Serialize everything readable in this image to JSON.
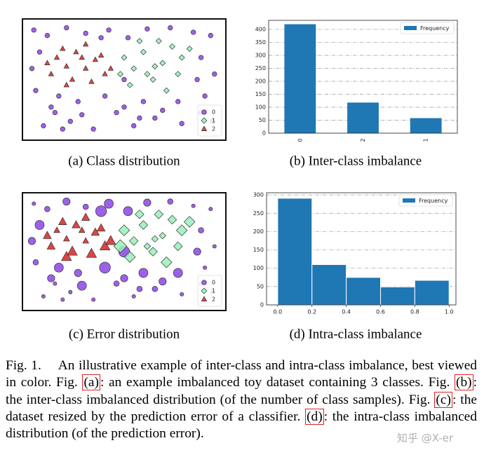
{
  "chart_data": [
    {
      "type": "scatter",
      "caption": "(a) Class distribution",
      "legend": "lower right",
      "series": [
        {
          "name": "0",
          "color": "#8d44e6",
          "marker": "circle",
          "x": [
            0.03,
            0.1,
            0.2,
            0.3,
            0.42,
            0.52,
            0.62,
            0.74,
            0.86,
            0.95,
            0.06,
            0.16,
            0.26,
            0.38,
            0.5,
            0.58,
            0.9,
            0.97,
            0.04,
            0.14,
            0.5,
            0.92,
            0.08,
            0.22,
            0.34,
            0.46,
            0.6,
            0.7,
            0.8,
            0.9,
            0.02,
            0.12,
            0.28,
            0.4,
            0.55,
            0.66,
            0.78,
            0.88,
            0.18,
            0.96
          ],
          "y": [
            0.95,
            0.9,
            0.97,
            0.92,
            0.95,
            0.88,
            0.96,
            0.97,
            0.93,
            0.9,
            0.75,
            0.35,
            0.3,
            0.88,
            0.5,
            0.15,
            0.7,
            0.55,
            0.4,
            0.2,
            0.25,
            0.35,
            0.08,
            0.12,
            0.05,
            0.2,
            0.3,
            0.22,
            0.1,
            0.2,
            0.6,
            0.25,
            0.18,
            0.35,
            0.08,
            0.15,
            0.3,
            0.5,
            0.05,
            0.12
          ]
        },
        {
          "name": "1",
          "color": "#98f0b8",
          "marker": "diamond",
          "x": [
            0.5,
            0.55,
            0.6,
            0.65,
            0.7,
            0.75,
            0.8,
            0.53,
            0.62,
            0.68,
            0.72,
            0.58,
            0.78,
            0.66,
            0.48,
            0.84
          ],
          "y": [
            0.7,
            0.6,
            0.75,
            0.5,
            0.65,
            0.8,
            0.7,
            0.45,
            0.55,
            0.85,
            0.4,
            0.85,
            0.55,
            0.62,
            0.55,
            0.78
          ]
        },
        {
          "name": "2",
          "color": "#d62424",
          "marker": "triangle",
          "x": [
            0.1,
            0.15,
            0.2,
            0.25,
            0.3,
            0.35,
            0.4,
            0.12,
            0.18,
            0.23,
            0.28,
            0.33,
            0.38,
            0.43,
            0.2,
            0.3
          ],
          "y": [
            0.65,
            0.7,
            0.62,
            0.75,
            0.6,
            0.68,
            0.55,
            0.55,
            0.78,
            0.5,
            0.7,
            0.48,
            0.72,
            0.6,
            0.45,
            0.82
          ]
        }
      ]
    },
    {
      "type": "bar",
      "caption": "(b) Inter-class imbalance",
      "legend": "upper right",
      "grid": true,
      "categories": [
        "0",
        "2",
        "1"
      ],
      "series": [
        {
          "name": "Frequency",
          "color": "#1f77b4",
          "values": [
            420,
            118,
            58
          ]
        }
      ],
      "ylim": [
        0,
        435
      ],
      "yticks": [
        0,
        50,
        100,
        150,
        200,
        250,
        300,
        350,
        400
      ]
    },
    {
      "type": "scatter",
      "caption": "(c) Error distribution",
      "legend": "lower right",
      "series": [
        {
          "name": "0",
          "color": "#8d44e6",
          "marker": "circle",
          "x": [
            0.03,
            0.1,
            0.2,
            0.3,
            0.42,
            0.52,
            0.62,
            0.74,
            0.86,
            0.95,
            0.06,
            0.16,
            0.26,
            0.38,
            0.5,
            0.58,
            0.9,
            0.97,
            0.04,
            0.14,
            0.5,
            0.92,
            0.08,
            0.22,
            0.34,
            0.46,
            0.6,
            0.7,
            0.8,
            0.9,
            0.02,
            0.12,
            0.28,
            0.4,
            0.55,
            0.66,
            0.78,
            0.88,
            0.18,
            0.96
          ],
          "y": [
            0.95,
            0.9,
            0.97,
            0.92,
            0.95,
            0.88,
            0.96,
            0.97,
            0.93,
            0.9,
            0.75,
            0.35,
            0.3,
            0.88,
            0.5,
            0.15,
            0.7,
            0.55,
            0.4,
            0.2,
            0.25,
            0.35,
            0.08,
            0.12,
            0.05,
            0.2,
            0.3,
            0.22,
            0.1,
            0.2,
            0.6,
            0.25,
            0.18,
            0.35,
            0.08,
            0.15,
            0.3,
            0.5,
            0.05,
            0.12
          ],
          "sizes": [
            1,
            1.5,
            2,
            1.5,
            2.5,
            2.5,
            2,
            1.5,
            1,
            1,
            2.5,
            2.5,
            2,
            3,
            3,
            1.5,
            1.5,
            1,
            1.5,
            1,
            2,
            1,
            1,
            1,
            1,
            1.5,
            2.5,
            2,
            1,
            1,
            2,
            2,
            2.5,
            3,
            1,
            1.5,
            2.5,
            2,
            1,
            1
          ]
        },
        {
          "name": "1",
          "color": "#98f0b8",
          "marker": "diamond",
          "x": [
            0.5,
            0.55,
            0.6,
            0.65,
            0.7,
            0.75,
            0.8,
            0.53,
            0.62,
            0.68,
            0.72,
            0.58,
            0.78,
            0.66,
            0.48,
            0.84
          ],
          "y": [
            0.7,
            0.6,
            0.75,
            0.5,
            0.65,
            0.8,
            0.7,
            0.45,
            0.55,
            0.85,
            0.4,
            0.85,
            0.55,
            0.62,
            0.55,
            0.78
          ],
          "sizes": [
            2.5,
            2,
            2,
            2,
            1.5,
            2,
            2.5,
            2.5,
            1.5,
            2,
            2.5,
            2,
            2,
            1.5,
            3,
            2.5
          ]
        },
        {
          "name": "2",
          "color": "#d62424",
          "marker": "triangle",
          "x": [
            0.1,
            0.15,
            0.2,
            0.25,
            0.3,
            0.35,
            0.4,
            0.12,
            0.18,
            0.23,
            0.28,
            0.33,
            0.38,
            0.43,
            0.2,
            0.3
          ],
          "y": [
            0.65,
            0.7,
            0.62,
            0.75,
            0.6,
            0.68,
            0.55,
            0.55,
            0.78,
            0.5,
            0.7,
            0.48,
            0.72,
            0.6,
            0.45,
            0.82
          ],
          "sizes": [
            2,
            1.5,
            1.5,
            2,
            1.5,
            2,
            2.5,
            2,
            2,
            2.5,
            1.5,
            2.5,
            2,
            2.5,
            2.5,
            2
          ]
        }
      ]
    },
    {
      "type": "histogram",
      "caption": "(d) Intra-class imbalance",
      "legend": "upper right",
      "grid": true,
      "bins": [
        0,
        0.2,
        0.4,
        0.6,
        0.8,
        1
      ],
      "series": [
        {
          "name": "Frequency",
          "color": "#1f77b4",
          "values": [
            291,
            110,
            75,
            49,
            67
          ]
        }
      ],
      "xlim": [
        -0.065,
        1.04
      ],
      "xticks": [
        {
          "value": 0,
          "label": "0.0"
        },
        0.2,
        0.4,
        0.6,
        0.8,
        {
          "value": 1,
          "label": "1.0"
        }
      ],
      "ylim": [
        0,
        306
      ],
      "yticks": [
        0,
        50,
        100,
        150,
        200,
        250,
        300
      ]
    }
  ],
  "figure_caption": [
    {
      "text": "Fig. 1.  An illustrative example of inter-class and intra-class imbalance, best viewed in color. Fig. "
    },
    {
      "ref": "(a)"
    },
    {
      "text": ": an example imbalanced toy dataset containing 3 classes. Fig. "
    },
    {
      "ref": "(b)"
    },
    {
      "text": ": the inter-class imbalanced distribution (of the number of class samples). Fig. "
    },
    {
      "ref": "(c)"
    },
    {
      "text": ": the dataset resized by the prediction error of a classifier. "
    },
    {
      "ref": "(d)"
    },
    {
      "text": ": the intra-class imbalanced distribution (of the prediction error)."
    }
  ],
  "watermark": "知乎 @X-er"
}
